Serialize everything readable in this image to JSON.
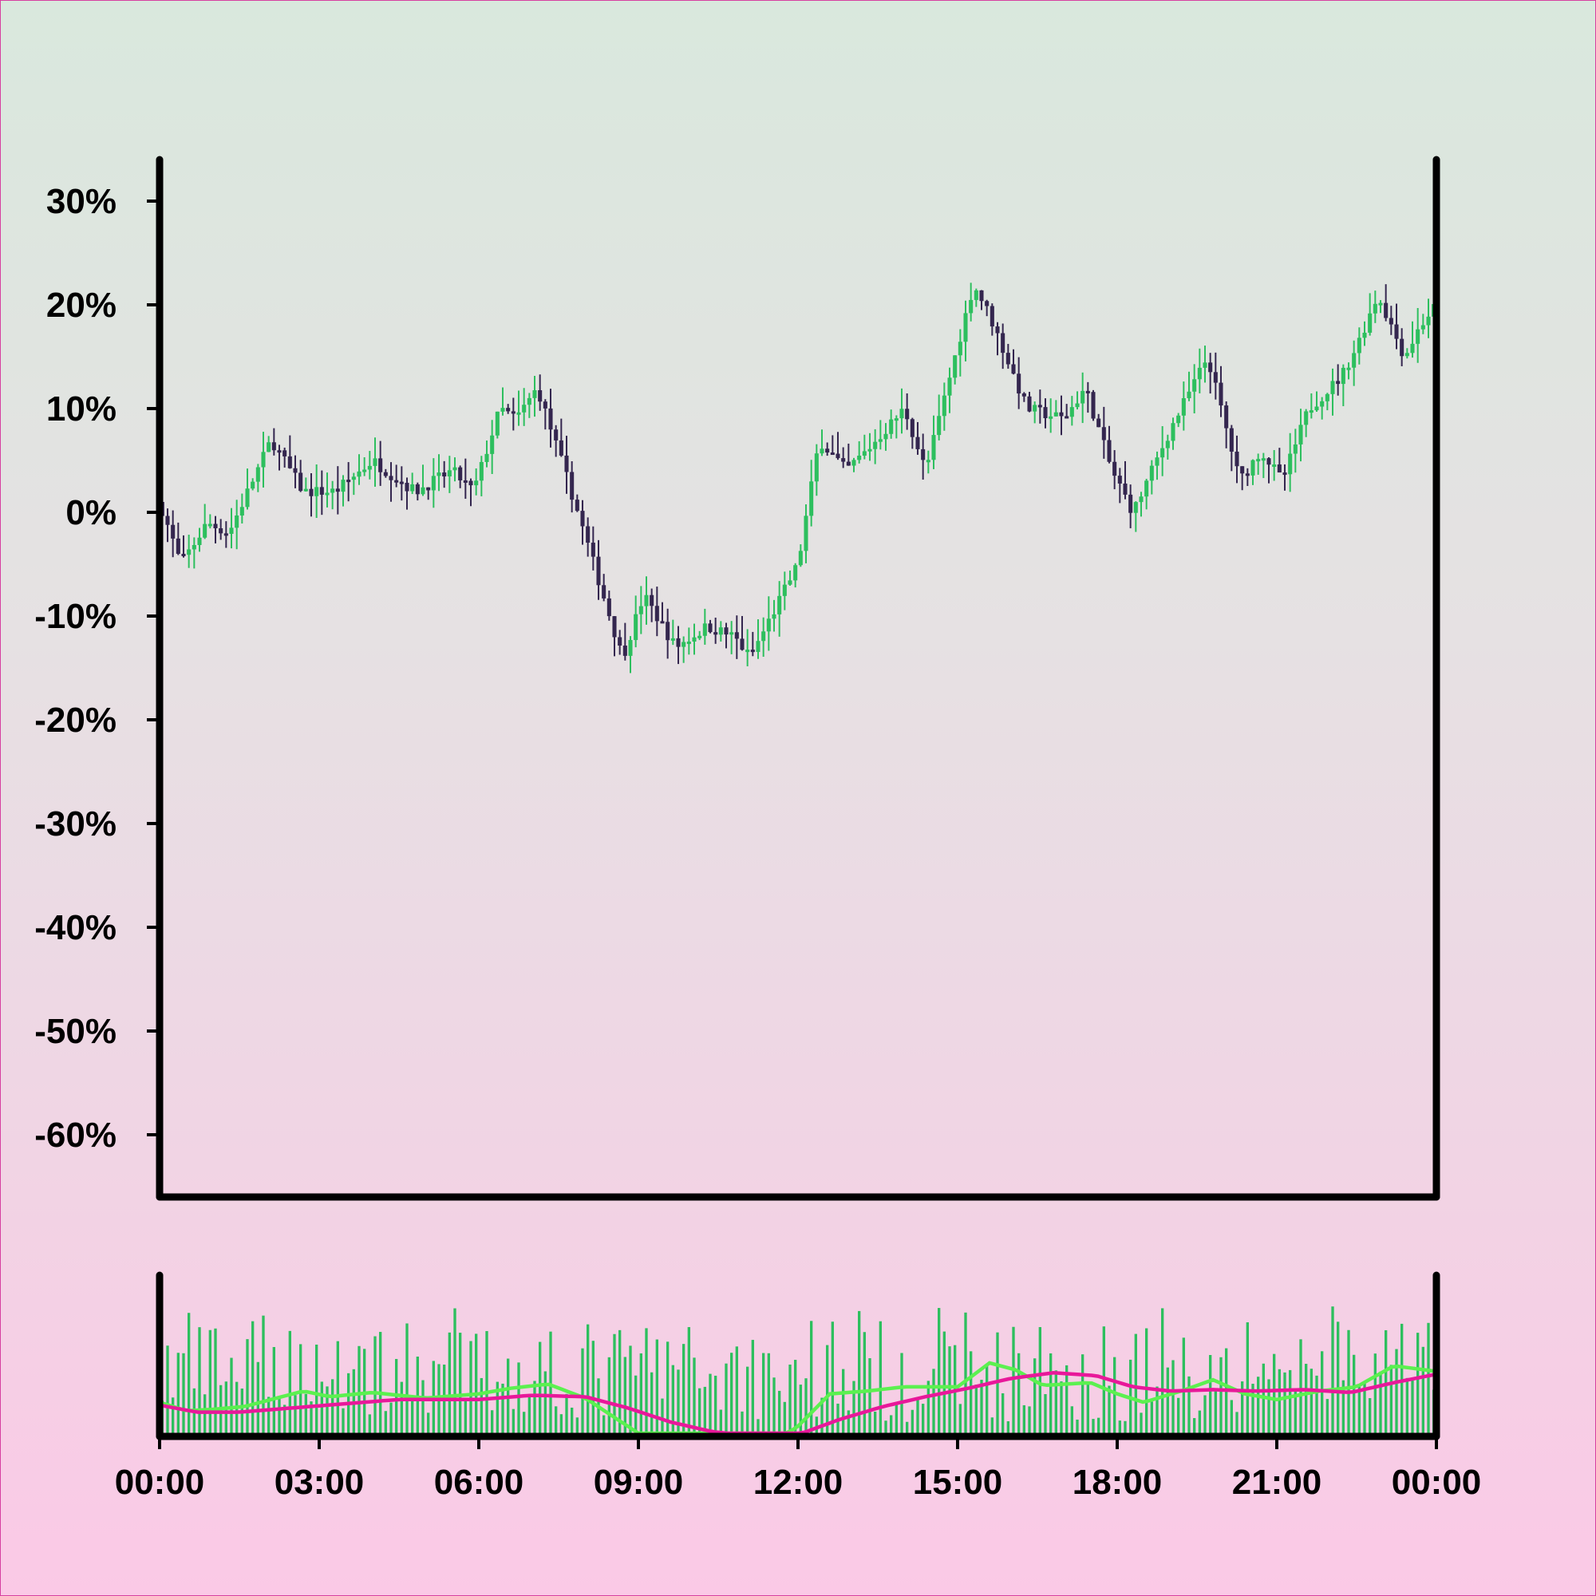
{
  "chart_data": {
    "type": "candlestick",
    "title": "",
    "xlabel": "",
    "ylabel": "",
    "ylim": [
      -0.66,
      0.34
    ],
    "y_ticks": [
      {
        "value": 0.3,
        "label": "30%"
      },
      {
        "value": 0.2,
        "label": "20%"
      },
      {
        "value": 0.1,
        "label": "10%"
      },
      {
        "value": 0.0,
        "label": "0%"
      },
      {
        "value": -0.1,
        "label": "-10%"
      },
      {
        "value": -0.2,
        "label": "-20%"
      },
      {
        "value": -0.3,
        "label": "-30%"
      },
      {
        "value": -0.4,
        "label": "-40%"
      },
      {
        "value": -0.5,
        "label": "-50%"
      },
      {
        "value": -0.6,
        "label": "-60%"
      }
    ],
    "x_ticks": [
      {
        "value": 0,
        "label": "00:00"
      },
      {
        "value": 3,
        "label": "03:00"
      },
      {
        "value": 6,
        "label": "06:00"
      },
      {
        "value": 9,
        "label": "09:00"
      },
      {
        "value": 12,
        "label": "12:00"
      },
      {
        "value": 15,
        "label": "15:00"
      },
      {
        "value": 18,
        "label": "18:00"
      },
      {
        "value": 21,
        "label": "21:00"
      },
      {
        "value": 24,
        "label": "00:00"
      }
    ],
    "xlim_hours": [
      0,
      24
    ],
    "grid": false,
    "legend": "none",
    "colors": {
      "up": "#2dbf5e",
      "down": "#34264f",
      "volume": "#2dbf5e",
      "ma_fast": "#5cf050",
      "ma_slow": "#e8189a",
      "axis": "#000000"
    },
    "close_path_keypoints": [
      [
        0.0,
        0.01
      ],
      [
        0.4,
        -0.05
      ],
      [
        0.9,
        -0.01
      ],
      [
        1.3,
        -0.02
      ],
      [
        2.1,
        0.07
      ],
      [
        2.7,
        0.02
      ],
      [
        3.3,
        0.02
      ],
      [
        4.0,
        0.05
      ],
      [
        4.8,
        0.02
      ],
      [
        5.5,
        0.04
      ],
      [
        5.9,
        0.02
      ],
      [
        6.4,
        0.1
      ],
      [
        6.7,
        0.09
      ],
      [
        7.1,
        0.12
      ],
      [
        7.8,
        0.01
      ],
      [
        8.7,
        -0.14
      ],
      [
        9.1,
        -0.08
      ],
      [
        9.7,
        -0.13
      ],
      [
        10.3,
        -0.11
      ],
      [
        10.8,
        -0.12
      ],
      [
        11.1,
        -0.14
      ],
      [
        12.0,
        -0.05
      ],
      [
        12.4,
        0.07
      ],
      [
        12.9,
        0.04
      ],
      [
        13.3,
        0.06
      ],
      [
        14.0,
        0.1
      ],
      [
        14.4,
        0.04
      ],
      [
        14.8,
        0.12
      ],
      [
        15.3,
        0.22
      ],
      [
        15.6,
        0.19
      ],
      [
        16.3,
        0.1
      ],
      [
        17.0,
        0.09
      ],
      [
        17.4,
        0.12
      ],
      [
        17.9,
        0.04
      ],
      [
        18.3,
        0.0
      ],
      [
        19.0,
        0.08
      ],
      [
        19.7,
        0.15
      ],
      [
        20.3,
        0.03
      ],
      [
        20.7,
        0.06
      ],
      [
        21.1,
        0.03
      ],
      [
        21.6,
        0.1
      ],
      [
        22.2,
        0.13
      ],
      [
        22.5,
        0.16
      ],
      [
        22.9,
        0.21
      ],
      [
        23.4,
        0.15
      ],
      [
        23.7,
        0.18
      ],
      [
        24.0,
        0.2
      ]
    ],
    "candle_count": 240,
    "volume": {
      "ylim": [
        0,
        1.0
      ],
      "ma_fast_keypoints": [
        [
          0.0,
          0.22
        ],
        [
          0.5,
          0.16
        ],
        [
          1.0,
          0.17
        ],
        [
          1.6,
          0.19
        ],
        [
          2.2,
          0.25
        ],
        [
          2.7,
          0.3
        ],
        [
          3.2,
          0.26
        ],
        [
          4.0,
          0.29
        ],
        [
          5.0,
          0.25
        ],
        [
          6.0,
          0.28
        ],
        [
          6.6,
          0.32
        ],
        [
          7.3,
          0.35
        ],
        [
          8.0,
          0.25
        ],
        [
          8.6,
          0.1
        ],
        [
          9.2,
          -0.05
        ],
        [
          10.2,
          -0.18
        ],
        [
          11.4,
          -0.1
        ],
        [
          12.0,
          0.05
        ],
        [
          12.6,
          0.28
        ],
        [
          13.3,
          0.3
        ],
        [
          14.0,
          0.33
        ],
        [
          15.0,
          0.33
        ],
        [
          15.6,
          0.5
        ],
        [
          16.1,
          0.45
        ],
        [
          16.6,
          0.34
        ],
        [
          17.5,
          0.36
        ],
        [
          18.0,
          0.28
        ],
        [
          18.5,
          0.22
        ],
        [
          19.2,
          0.3
        ],
        [
          19.8,
          0.38
        ],
        [
          20.4,
          0.28
        ],
        [
          21.0,
          0.24
        ],
        [
          21.8,
          0.3
        ],
        [
          22.5,
          0.33
        ],
        [
          23.2,
          0.48
        ],
        [
          23.6,
          0.46
        ],
        [
          24.0,
          0.44
        ]
      ],
      "ma_slow_keypoints": [
        [
          0.0,
          0.2
        ],
        [
          0.7,
          0.15
        ],
        [
          1.5,
          0.15
        ],
        [
          2.5,
          0.18
        ],
        [
          3.5,
          0.21
        ],
        [
          4.5,
          0.24
        ],
        [
          6.0,
          0.24
        ],
        [
          7.0,
          0.27
        ],
        [
          8.0,
          0.26
        ],
        [
          8.8,
          0.18
        ],
        [
          9.6,
          0.08
        ],
        [
          10.4,
          0.01
        ],
        [
          11.2,
          -0.02
        ],
        [
          12.0,
          -0.01
        ],
        [
          12.8,
          0.1
        ],
        [
          13.6,
          0.19
        ],
        [
          14.4,
          0.26
        ],
        [
          15.2,
          0.32
        ],
        [
          16.0,
          0.39
        ],
        [
          16.8,
          0.43
        ],
        [
          17.6,
          0.41
        ],
        [
          18.3,
          0.33
        ],
        [
          19.0,
          0.3
        ],
        [
          19.8,
          0.31
        ],
        [
          20.6,
          0.3
        ],
        [
          21.5,
          0.31
        ],
        [
          22.4,
          0.29
        ],
        [
          23.2,
          0.36
        ],
        [
          24.0,
          0.42
        ]
      ]
    }
  }
}
